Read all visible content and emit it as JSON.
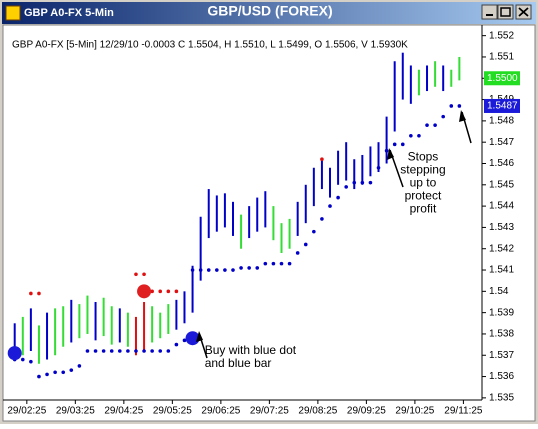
{
  "window_title": "GBP A0-FX 5-Min",
  "chart_data": {
    "type": "ohlc",
    "title": "GBP/USD (FOREX)",
    "info": "GBP A0-FX [5-Min] 12/29/10  -0.0003 C 1.5504, H 1.5510, L 1.5499, O 1.5506, V 1.5930K",
    "xlim": [
      -1.2,
      57.8
    ],
    "xticks": [
      {
        "value": 1.5,
        "label": "29/02:25"
      },
      {
        "value": 7.5,
        "label": "29/03:25"
      },
      {
        "value": 13.5,
        "label": "29/04:25"
      },
      {
        "value": 19.5,
        "label": "29/05:25"
      },
      {
        "value": 25.5,
        "label": "29/06:25"
      },
      {
        "value": 31.5,
        "label": "29/07:25"
      },
      {
        "value": 37.5,
        "label": "29/08:25"
      },
      {
        "value": 43.5,
        "label": "29/09:25"
      },
      {
        "value": 49.5,
        "label": "29/10:25"
      },
      {
        "value": 55.5,
        "label": "29/11:25"
      }
    ],
    "ylim": [
      1.5349,
      1.5525
    ],
    "yticks": [
      1.535,
      1.536,
      1.537,
      1.538,
      1.539,
      1.54,
      1.541,
      1.542,
      1.543,
      1.544,
      1.545,
      1.546,
      1.547,
      1.548,
      1.549,
      1.55,
      1.551,
      1.552
    ],
    "series": [
      {
        "color": "#0000c8",
        "x": [
          0,
          2,
          4,
          7,
          10,
          13,
          20,
          21,
          22,
          23,
          24,
          25,
          26,
          27,
          29,
          30,
          31,
          35,
          36,
          37,
          38,
          39,
          40,
          41,
          42,
          43,
          44,
          45,
          46,
          47,
          48,
          49,
          51,
          53
        ],
        "low": [
          1.5368,
          1.5372,
          1.5368,
          1.5376,
          1.5377,
          1.5376,
          1.5382,
          1.5385,
          1.539,
          1.5405,
          1.5425,
          1.5428,
          1.543,
          1.5426,
          1.5425,
          1.5428,
          1.543,
          1.5426,
          1.5432,
          1.544,
          1.5448,
          1.5444,
          1.545,
          1.5452,
          1.5448,
          1.545,
          1.5454,
          1.5456,
          1.546,
          1.5475,
          1.549,
          1.5488,
          1.5494,
          1.5494
        ],
        "high": [
          1.5385,
          1.5392,
          1.539,
          1.5396,
          1.5395,
          1.5392,
          1.5396,
          1.54,
          1.5412,
          1.5435,
          1.5448,
          1.5445,
          1.5446,
          1.5442,
          1.544,
          1.5444,
          1.5447,
          1.5442,
          1.545,
          1.5458,
          1.5462,
          1.5458,
          1.5466,
          1.547,
          1.5462,
          1.5464,
          1.5468,
          1.547,
          1.5482,
          1.5508,
          1.5512,
          1.5506,
          1.5506,
          1.5506
        ]
      },
      {
        "color": "#33dd33",
        "x": [
          1,
          3,
          5,
          6,
          8,
          9,
          11,
          12,
          14,
          17,
          18,
          19,
          28,
          32,
          33,
          34,
          50,
          52,
          54,
          55
        ],
        "low": [
          1.537,
          1.5366,
          1.537,
          1.5374,
          1.5378,
          1.538,
          1.5379,
          1.5375,
          1.5374,
          1.5376,
          1.5378,
          1.538,
          1.542,
          1.5424,
          1.5418,
          1.542,
          1.5492,
          1.5496,
          1.5496,
          1.5499
        ],
        "high": [
          1.5388,
          1.5384,
          1.5392,
          1.5393,
          1.5394,
          1.5398,
          1.5397,
          1.5393,
          1.539,
          1.5393,
          1.539,
          1.5394,
          1.5436,
          1.544,
          1.5432,
          1.5434,
          1.5504,
          1.5508,
          1.5504,
          1.551
        ]
      },
      {
        "color": "#e01010",
        "x": [
          15,
          16
        ],
        "low": [
          1.537,
          1.5372
        ],
        "high": [
          1.5388,
          1.5395
        ]
      }
    ],
    "x": [
      0,
      1,
      2,
      3,
      4,
      5,
      6,
      7,
      8,
      9,
      10,
      11,
      12,
      13,
      14,
      15,
      16,
      17,
      18,
      19,
      20,
      21,
      22,
      23,
      24,
      25,
      26,
      27,
      28,
      29,
      30,
      31,
      32,
      33,
      34,
      35,
      36,
      37,
      38,
      39,
      40,
      41,
      42,
      43,
      44,
      45,
      46,
      47,
      48,
      49,
      50,
      51,
      52,
      53,
      54,
      55
    ],
    "stops": [
      {
        "color": "#0000c8",
        "values": [
          1.5368,
          1.5368,
          1.5367,
          1.536,
          1.5361,
          1.5362,
          1.5362,
          1.5363,
          1.5365,
          1.5372,
          1.5372,
          1.5372,
          1.5372,
          1.5372,
          1.5372,
          1.5372,
          1.5372,
          1.5372,
          1.5372,
          1.5372,
          1.5375,
          1.5377,
          1.541,
          1.541,
          1.541,
          1.541,
          1.541,
          1.541,
          1.5411,
          1.5411,
          1.5411,
          1.5413,
          1.5413,
          1.5413,
          1.5413,
          1.5418,
          1.5422,
          1.5428,
          1.5434,
          1.544,
          1.5444,
          1.5449,
          1.5451,
          1.5451,
          1.5451,
          1.5458,
          1.5466,
          1.5469,
          1.5469,
          1.5473,
          1.5473,
          1.5478,
          1.5478,
          1.5482,
          1.5487,
          1.5487
        ]
      },
      {
        "color": "#e01010",
        "values": [
          null,
          null,
          1.5399,
          1.5399,
          null,
          null,
          null,
          null,
          null,
          null,
          null,
          null,
          null,
          null,
          null,
          1.5408,
          1.5408,
          1.54,
          1.54,
          1.54,
          1.54,
          null,
          null,
          null,
          null,
          null,
          null,
          null,
          null,
          null,
          null,
          null,
          null,
          null,
          null,
          null,
          null,
          null,
          1.5462,
          null,
          null,
          null,
          null,
          null,
          null,
          null,
          null,
          null,
          null,
          null,
          null,
          null,
          null,
          null,
          null,
          null
        ]
      }
    ],
    "signals": [
      {
        "x": 0,
        "value": 1.5371,
        "color": "#1a1ad8"
      },
      {
        "x": 16,
        "value": 1.54,
        "color": "#e02020"
      },
      {
        "x": 22,
        "value": 1.5378,
        "color": "#1a1ad8"
      }
    ],
    "price_tags": [
      {
        "value": 1.55,
        "label": "1.5500",
        "color": "#22dd22",
        "text_color": "#ffffff"
      },
      {
        "value": 1.5487,
        "label": "1.5487",
        "color": "#1a1ad8",
        "text_color": "#ffffff"
      }
    ],
    "annotations": [
      {
        "x": 23.5,
        "value": 1.5372,
        "lines": [
          "Buy with blue dot",
          "and blue bar"
        ]
      },
      {
        "x": 50.5,
        "value": 1.5463,
        "lines": [
          "Stops",
          "stepping",
          "up to",
          "protect",
          "profit"
        ]
      }
    ]
  }
}
